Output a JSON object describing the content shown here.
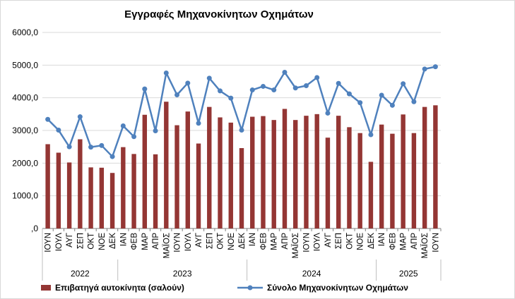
{
  "chart_data": {
    "type": "bar",
    "title": "Εγγραφές Μηχανοκίνητων Οχημάτων",
    "ylim": [
      0,
      6000
    ],
    "yticks": [
      "6000,0",
      "5000,0",
      "4000,0",
      "3000,0",
      "2000,0",
      "1000,0",
      ",0"
    ],
    "ytick_values": [
      6000,
      5000,
      4000,
      3000,
      2000,
      1000,
      0
    ],
    "grid": true,
    "legend_position": "bottom",
    "categories": [
      "ΙΟΥΝ",
      "ΙΟΥΛ",
      "ΑΥΓ",
      "ΣΕΠ",
      "ΟΚΤ",
      "ΝΟΕ",
      "ΔΕΚ",
      "ΙΑΝ",
      "ΦΕΒ",
      "ΜΑΡ",
      "ΑΠΡ",
      "ΜΑΪΟΣ",
      "ΙΟΥΝ",
      "ΙΟΥΛ",
      "ΑΥΓ",
      "ΣΕΠ",
      "ΟΚΤ",
      "ΝΟΕ",
      "ΔΕΚ",
      "ΙΑΝ",
      "ΦΕΒ",
      "ΜΑΡ",
      "ΑΠΡ",
      "ΜΑΪΟΣ",
      "ΙΟΥΝ",
      "ΙΟΥΛ",
      "ΑΥΓ",
      "ΣΕΠ",
      "ΟΚΤ",
      "ΝΟΕ",
      "ΔΕΚ",
      "ΙΑΝ",
      "ΦΕΒ",
      "ΜΑΡ",
      "ΑΠΡ",
      "ΜΑΪΟΣ",
      "ΙΟΥΝ"
    ],
    "year_groups": [
      {
        "label": "2022",
        "count": 7
      },
      {
        "label": "2023",
        "count": 12
      },
      {
        "label": "2024",
        "count": 12
      },
      {
        "label": "2025",
        "count": 6
      }
    ],
    "series": [
      {
        "name": "Επιβατηγά αυτοκίνητα (σαλούν)",
        "type": "bar",
        "color": "#943634",
        "values": [
          2580,
          2320,
          2020,
          2730,
          1870,
          1860,
          1700,
          2490,
          2280,
          3480,
          2270,
          3880,
          3160,
          3580,
          2600,
          3720,
          3400,
          3240,
          2460,
          3420,
          3440,
          3320,
          3660,
          3320,
          3450,
          3500,
          2780,
          3450,
          3100,
          2920,
          2040,
          3180,
          2900,
          3490,
          2920,
          3720,
          3770
        ]
      },
      {
        "name": "Σύνολο Μηχανοκίνητων Οχημάτων",
        "type": "line",
        "color": "#4f81bd",
        "values": [
          3340,
          3010,
          2500,
          3420,
          2490,
          2540,
          2200,
          3140,
          2810,
          4270,
          2990,
          4760,
          4090,
          4450,
          3220,
          4600,
          4210,
          3990,
          3010,
          4240,
          4350,
          4240,
          4780,
          4300,
          4370,
          4620,
          3530,
          4440,
          4120,
          3850,
          2870,
          4080,
          3770,
          4430,
          3880,
          4880,
          4950
        ]
      }
    ]
  }
}
